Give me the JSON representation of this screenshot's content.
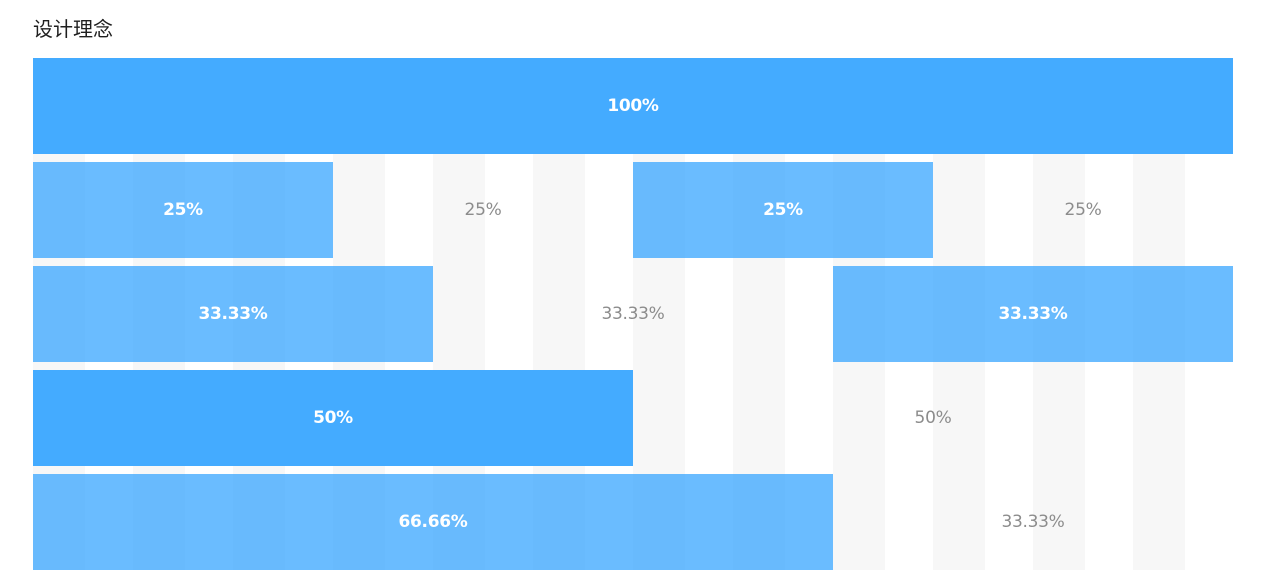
{
  "section": {
    "title": "设计理念"
  },
  "rows": [
    {
      "columns": [
        {
          "label": "100%",
          "style": "filled-strong"
        }
      ]
    },
    {
      "columns": [
        {
          "label": "25%",
          "style": "filled"
        },
        {
          "label": "25%",
          "style": "plain"
        },
        {
          "label": "25%",
          "style": "filled"
        },
        {
          "label": "25%",
          "style": "plain"
        }
      ]
    },
    {
      "columns": [
        {
          "label": "33.33%",
          "style": "filled"
        },
        {
          "label": "33.33%",
          "style": "plain"
        },
        {
          "label": "33.33%",
          "style": "filled"
        }
      ]
    },
    {
      "columns": [
        {
          "label": "50%",
          "style": "filled-strong"
        },
        {
          "label": "50%",
          "style": "plain"
        }
      ]
    },
    {
      "columns": [
        {
          "label": "66.66%",
          "style": "filled"
        },
        {
          "label": "33.33%",
          "style": "plain"
        }
      ]
    }
  ],
  "colors": {
    "primary": "#40a9ff",
    "stripe": "#f7f7f7",
    "plain_text": "#8c8c8c"
  }
}
